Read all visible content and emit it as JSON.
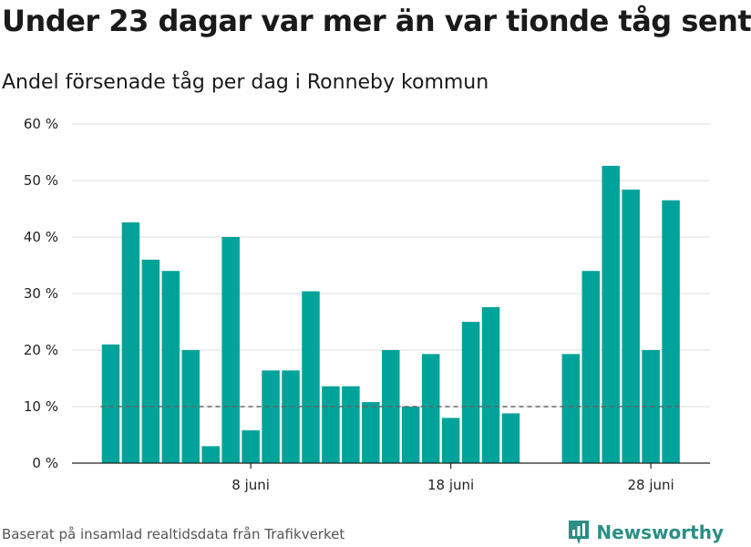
{
  "title": "Under 23 dagar var mer än var tionde tåg sent",
  "subtitle": "Andel försenade tåg per dag i Ronneby kommun",
  "source": "Baserat på insamlad realtidsdata från Trafikverket",
  "brand": {
    "name": "Newsworthy",
    "icon": "bar-chart-logo-icon",
    "color": "#2b8f86"
  },
  "chart_data": {
    "type": "bar",
    "title": "Under 23 dagar var mer än var tionde tåg sent",
    "subtitle": "Andel försenade tåg per dag i Ronneby kommun",
    "xlabel": "",
    "ylabel": "",
    "x_unit": "day of June",
    "x": [
      1,
      2,
      3,
      4,
      5,
      6,
      7,
      8,
      9,
      10,
      11,
      12,
      13,
      14,
      15,
      16,
      17,
      18,
      19,
      20,
      21,
      22,
      23,
      24,
      25,
      26,
      27,
      28,
      29
    ],
    "values": [
      21,
      42.6,
      36,
      34,
      20,
      3,
      40,
      5.8,
      16.4,
      16.4,
      30.4,
      13.6,
      13.6,
      10.8,
      20,
      10,
      19.3,
      8,
      25,
      27.6,
      8.8,
      null,
      null,
      19.3,
      34,
      52.6,
      48.4,
      20,
      46.5
    ],
    "ylim": [
      0,
      60
    ],
    "y_ticks": [
      0,
      10,
      20,
      30,
      40,
      50,
      60
    ],
    "y_tick_labels": [
      "0 %",
      "10 %",
      "20 %",
      "30 %",
      "40 %",
      "50 %",
      "60 %"
    ],
    "x_ticks": [
      8,
      18,
      28
    ],
    "x_tick_labels": [
      "8 juni",
      "18 juni",
      "28 juni"
    ],
    "reference_line": {
      "value": 10,
      "style": "dashed"
    },
    "grid": true,
    "bar_color": "#00a39a",
    "gridline_color": "#dddddd",
    "reference_line_color": "#666666"
  }
}
